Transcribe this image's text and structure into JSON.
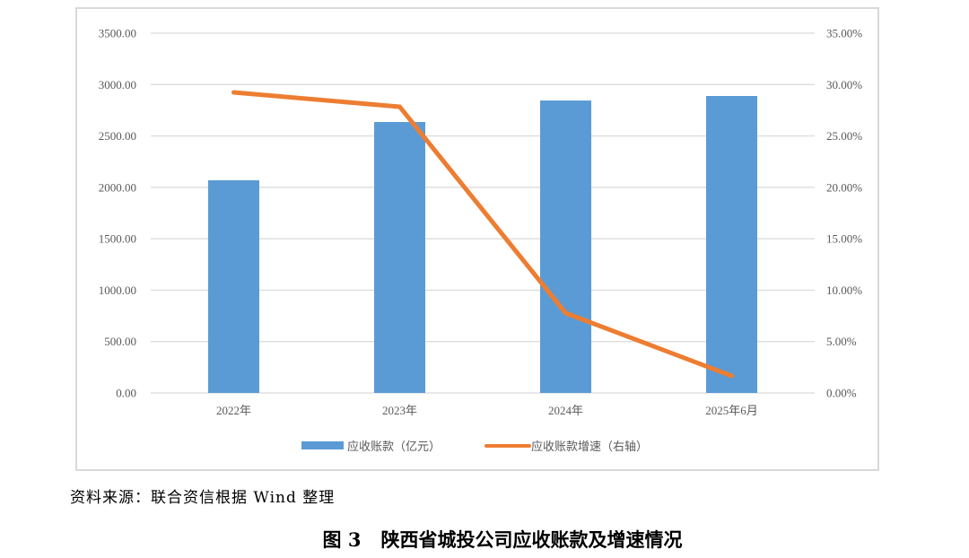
{
  "chart_data": {
    "type": "bar+line",
    "title": "图 3 陕西省城投公司应收账款及增速情况",
    "categories": [
      "2022年",
      "2023年",
      "2024年",
      "2025年6月"
    ],
    "series": [
      {
        "name": "应收账款（亿元）",
        "type": "bar",
        "axis": "left",
        "color": "#5b9bd5",
        "values": [
          2069,
          2636,
          2845,
          2889
        ]
      },
      {
        "name": "应收账款增速（右轴）",
        "type": "line",
        "axis": "right",
        "color": "#ed7d31",
        "values": [
          29.24,
          27.84,
          7.77,
          1.66
        ],
        "unit": "%"
      }
    ],
    "left_axis": {
      "min": 0,
      "max": 3500,
      "step": 500,
      "ticks": [
        "0.00",
        "500.00",
        "1000.00",
        "1500.00",
        "2000.00",
        "2500.00",
        "3000.00",
        "3500.00"
      ]
    },
    "right_axis": {
      "min": 0,
      "max": 35,
      "step": 5,
      "ticks": [
        "0.00%",
        "5.00%",
        "10.00%",
        "15.00%",
        "20.00%",
        "25.00%",
        "30.00%",
        "35.00%"
      ]
    },
    "xlabel": "",
    "ylabel": "",
    "grid": true,
    "legend_position": "bottom"
  },
  "legend": {
    "bar_label": "应收账款（亿元）",
    "line_label": "应收账款增速（右轴）"
  },
  "source_note": "资料来源：联合资信根据 Wind 整理",
  "caption": {
    "number": "图 3",
    "text": "陕西省城投公司应收账款及增速情况"
  }
}
